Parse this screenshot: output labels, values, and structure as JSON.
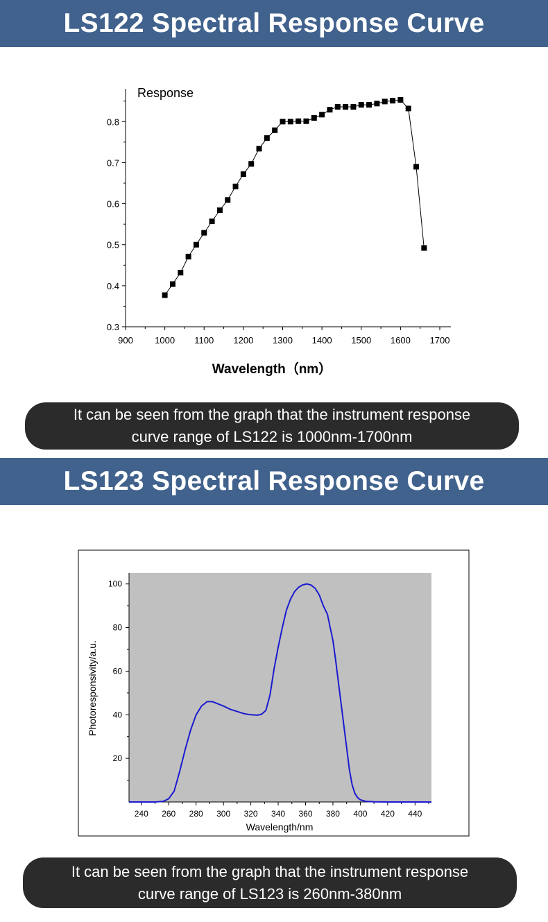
{
  "sections": [
    {
      "title": "LS122 Spectral Response Curve",
      "caption_line1": "It can be seen from the graph that the instrument response",
      "caption_line2": "curve range of LS122 is 1000nm-1700nm"
    },
    {
      "title": "LS123 Spectral Response Curve",
      "caption_line1": "It can be seen from the graph that the instrument response",
      "caption_line2": "curve range of LS123 is 260nm-380nm"
    }
  ],
  "chart_data": [
    {
      "type": "line",
      "markers": "square",
      "ylabel": "Response",
      "xlabel": "Wavelength（nm）",
      "xlim": [
        900,
        1700
      ],
      "ylim": [
        0.3,
        0.88
      ],
      "xticks": [
        900,
        1000,
        1100,
        1200,
        1300,
        1400,
        1500,
        1600,
        1700
      ],
      "yticks": [
        0.3,
        0.4,
        0.5,
        0.6,
        0.7,
        0.8
      ],
      "x": [
        1000,
        1020,
        1040,
        1060,
        1080,
        1100,
        1120,
        1140,
        1160,
        1180,
        1200,
        1220,
        1240,
        1260,
        1280,
        1300,
        1320,
        1340,
        1360,
        1380,
        1400,
        1420,
        1440,
        1460,
        1480,
        1500,
        1520,
        1540,
        1560,
        1580,
        1600,
        1620,
        1640,
        1660
      ],
      "y": [
        0.377,
        0.404,
        0.432,
        0.471,
        0.5,
        0.529,
        0.557,
        0.584,
        0.609,
        0.642,
        0.672,
        0.697,
        0.734,
        0.76,
        0.779,
        0.8,
        0.8,
        0.801,
        0.801,
        0.809,
        0.817,
        0.829,
        0.836,
        0.836,
        0.836,
        0.841,
        0.841,
        0.844,
        0.849,
        0.851,
        0.853,
        0.832,
        0.69,
        0.492
      ],
      "line_color": "#000000"
    },
    {
      "type": "line",
      "ylabel": "Photoresponsivity/a.u.",
      "xlabel": "Wavelength/nm",
      "xlim": [
        231,
        452
      ],
      "ylim": [
        0,
        105
      ],
      "xticks": [
        240,
        260,
        280,
        300,
        320,
        340,
        360,
        380,
        400,
        420,
        440
      ],
      "yticks": [
        20,
        40,
        60,
        80,
        100
      ],
      "x": [
        231,
        250,
        256,
        260,
        264,
        268,
        272,
        276,
        280,
        284,
        288,
        292,
        296,
        300,
        305,
        310,
        315,
        320,
        325,
        328,
        331,
        334,
        337,
        340,
        343,
        346,
        349,
        352,
        355,
        358,
        361,
        364,
        367,
        370,
        373,
        376,
        378,
        380,
        382,
        384,
        386,
        388,
        390,
        392,
        394,
        396,
        398,
        400,
        404,
        410,
        420,
        452
      ],
      "y": [
        0,
        0,
        0.3,
        1.5,
        5,
        14,
        24,
        33,
        40,
        44,
        46,
        46,
        45,
        44,
        42.5,
        41.5,
        40.5,
        40,
        39.8,
        40.3,
        42,
        49,
        61,
        71,
        80,
        88,
        93,
        96.5,
        98.5,
        99.6,
        100,
        99.5,
        98,
        95,
        90,
        86,
        80,
        74,
        65,
        55,
        45,
        35,
        25,
        15,
        8,
        4,
        2,
        1,
        0.3,
        0.1,
        0,
        0
      ],
      "line_color": "#1a1ad0",
      "plot_background": "#c0c0c0"
    }
  ]
}
